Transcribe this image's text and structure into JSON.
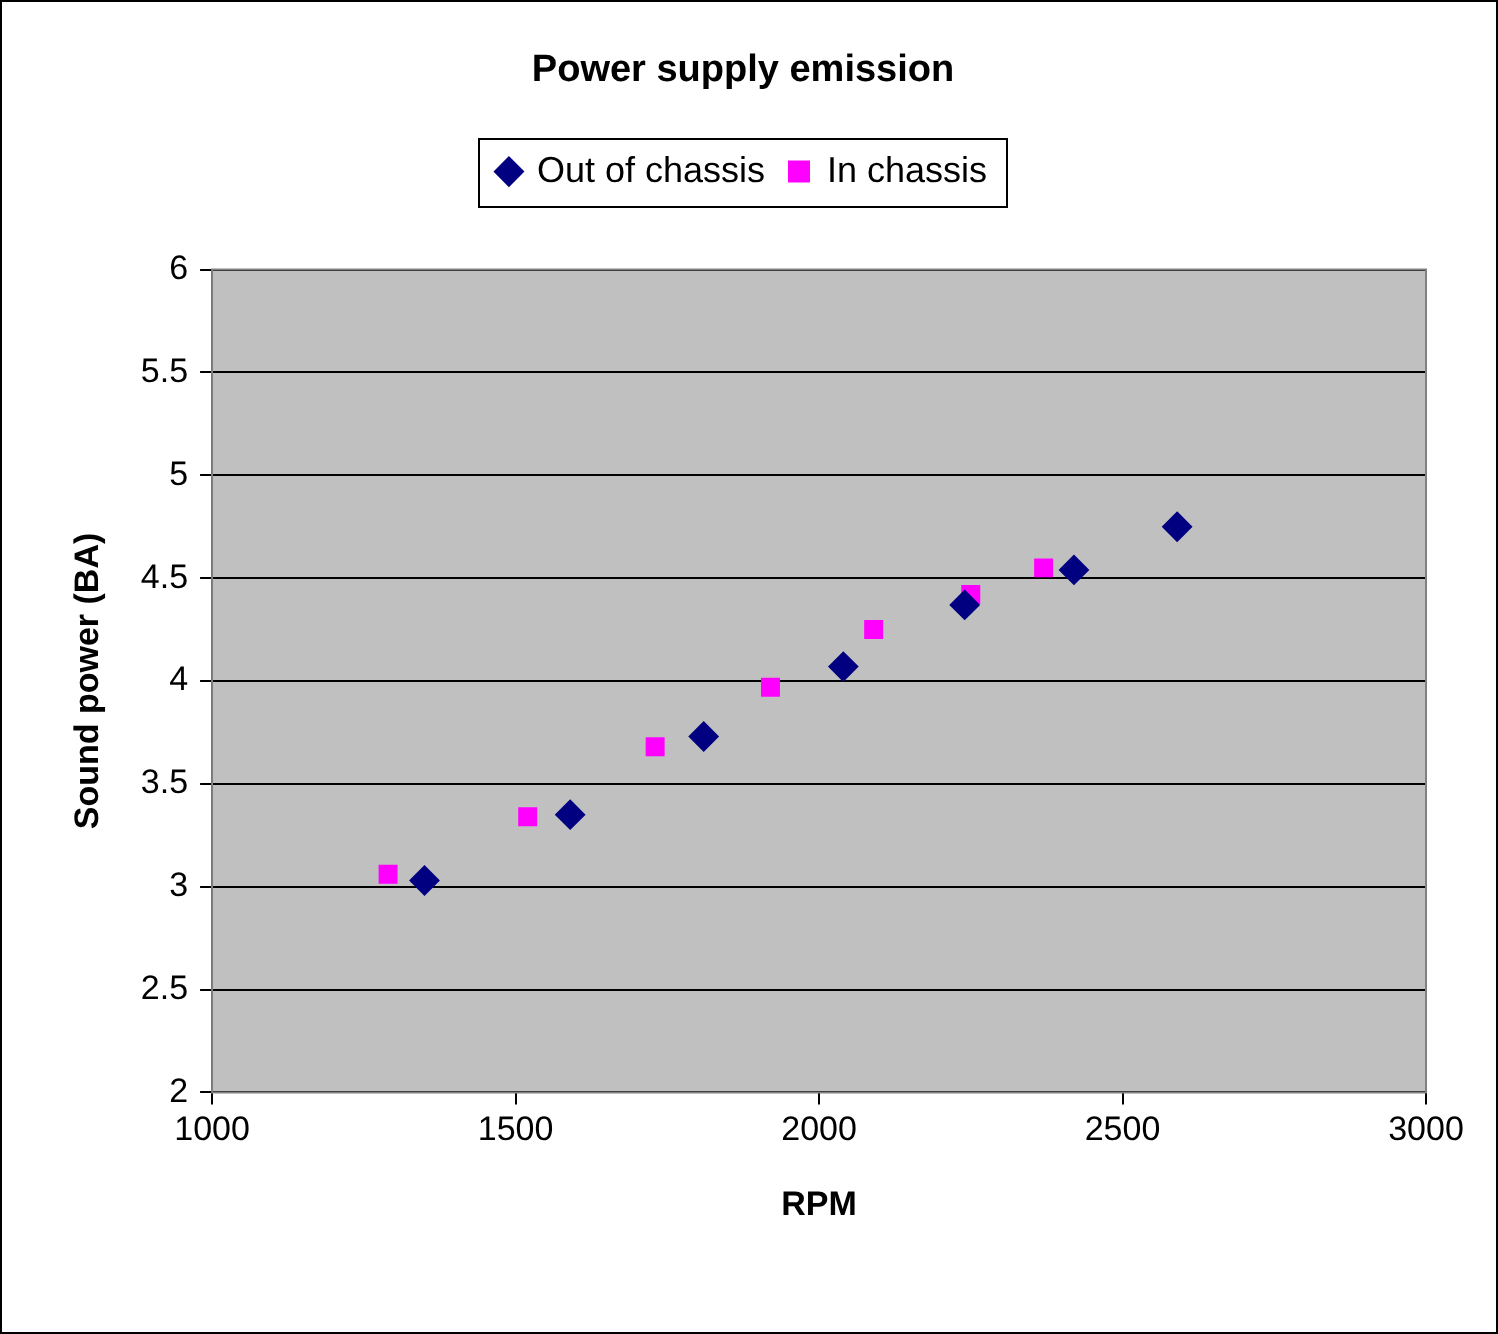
{
  "chart_data": {
    "type": "scatter",
    "title": "Power supply emission",
    "xlabel": "RPM",
    "ylabel": "Sound power (BA)",
    "series": [
      {
        "name": "Out of chassis",
        "color": "#000080",
        "marker": "diamond",
        "x": [
          1350,
          1590,
          1810,
          2040,
          2240,
          2420,
          2590
        ],
        "values": [
          3.03,
          3.35,
          3.73,
          4.07,
          4.37,
          4.54,
          4.75
        ]
      },
      {
        "name": "In chassis",
        "color": "#ff00ff",
        "marker": "square",
        "x": [
          1290,
          1520,
          1730,
          1920,
          2090,
          2250,
          2370
        ],
        "values": [
          3.06,
          3.34,
          3.68,
          3.97,
          4.25,
          4.42,
          4.55
        ]
      }
    ],
    "xlim": [
      1000,
      3000
    ],
    "xticks": [
      1000,
      1500,
      2000,
      2500,
      3000
    ],
    "ylim": [
      2,
      6
    ],
    "yticks": [
      2,
      2.5,
      3,
      3.5,
      4,
      4.5,
      5,
      5.5,
      6
    ],
    "grid": "y",
    "legend": "top"
  }
}
